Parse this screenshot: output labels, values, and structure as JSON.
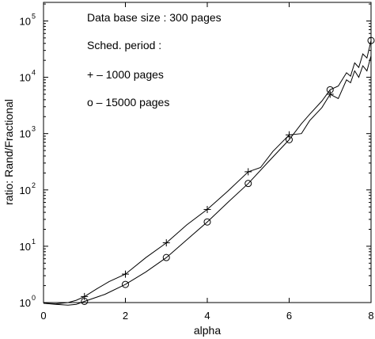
{
  "chart_data": {
    "type": "line",
    "xlabel": "alpha",
    "ylabel": "ratio:  Rand/Fractional",
    "xlim": [
      0,
      8
    ],
    "ylim_log10": [
      0,
      5.33
    ],
    "y_scale": "log",
    "grid": false,
    "x_ticks": [
      {
        "value": 0,
        "label": "0"
      },
      {
        "value": 2,
        "label": "2"
      },
      {
        "value": 4,
        "label": "4"
      },
      {
        "value": 6,
        "label": "6"
      },
      {
        "value": 8,
        "label": "8"
      }
    ],
    "y_ticks": [
      {
        "exp": 0,
        "base": "10",
        "sup": "0"
      },
      {
        "exp": 1,
        "base": "10",
        "sup": "1"
      },
      {
        "exp": 2,
        "base": "10",
        "sup": "2"
      },
      {
        "exp": 3,
        "base": "10",
        "sup": "3"
      },
      {
        "exp": 4,
        "base": "10",
        "sup": "4"
      },
      {
        "exp": 5,
        "base": "10",
        "sup": "5"
      }
    ],
    "annotations": [
      "Data base size : 300 pages",
      "Sched. period :",
      "+ – 1000 pages",
      "o – 15000 pages"
    ],
    "series": [
      {
        "marker": "plus",
        "line": [
          [
            0.0,
            0.97
          ],
          [
            0.3,
            0.95
          ],
          [
            0.6,
            1.0
          ],
          [
            0.8,
            1.1
          ],
          [
            1.0,
            1.28
          ],
          [
            1.3,
            1.75
          ],
          [
            1.6,
            2.35
          ],
          [
            2.0,
            3.2
          ],
          [
            2.5,
            6.3
          ],
          [
            3.0,
            11.5
          ],
          [
            3.5,
            24.0
          ],
          [
            4.0,
            45.0
          ],
          [
            4.5,
            95.0
          ],
          [
            5.0,
            210.0
          ],
          [
            5.3,
            250.0
          ],
          [
            5.6,
            480.0
          ],
          [
            6.0,
            950.0
          ],
          [
            6.3,
            1000.0
          ],
          [
            6.5,
            1700.0
          ],
          [
            6.8,
            2900.0
          ],
          [
            7.0,
            5000.0
          ],
          [
            7.2,
            4200.0
          ],
          [
            7.4,
            9000.0
          ],
          [
            7.5,
            8000.0
          ],
          [
            7.6,
            13000.0
          ],
          [
            7.7,
            10000.0
          ],
          [
            7.8,
            16000.0
          ],
          [
            7.9,
            13000.0
          ],
          [
            8.0,
            24000.0
          ]
        ],
        "marker_points": [
          [
            1,
            1.28
          ],
          [
            2,
            3.2
          ],
          [
            3,
            11.5
          ],
          [
            4,
            45.0
          ],
          [
            5,
            210.0
          ],
          [
            6,
            950.0
          ],
          [
            7,
            5000.0
          ]
        ]
      },
      {
        "marker": "circle",
        "line": [
          [
            0.0,
            0.97
          ],
          [
            0.3,
            0.93
          ],
          [
            0.6,
            0.9
          ],
          [
            0.8,
            0.93
          ],
          [
            1.0,
            1.05
          ],
          [
            1.5,
            1.4
          ],
          [
            2.0,
            2.1
          ],
          [
            2.5,
            3.5
          ],
          [
            3.0,
            6.3
          ],
          [
            3.5,
            13.0
          ],
          [
            4.0,
            27.0
          ],
          [
            4.5,
            60.0
          ],
          [
            5.0,
            130.0
          ],
          [
            5.5,
            320.0
          ],
          [
            6.0,
            780.0
          ],
          [
            6.3,
            1500.0
          ],
          [
            6.5,
            2200.0
          ],
          [
            6.8,
            3800.0
          ],
          [
            7.0,
            6000.0
          ],
          [
            7.2,
            7000.0
          ],
          [
            7.4,
            12000.0
          ],
          [
            7.5,
            10500.0
          ],
          [
            7.6,
            18000.0
          ],
          [
            7.7,
            15000.0
          ],
          [
            7.8,
            26000.0
          ],
          [
            7.9,
            22000.0
          ],
          [
            8.0,
            45000.0
          ]
        ],
        "marker_points": [
          [
            1,
            1.05
          ],
          [
            2,
            2.1
          ],
          [
            3,
            6.3
          ],
          [
            4,
            27.0
          ],
          [
            5,
            130.0
          ],
          [
            6,
            780.0
          ],
          [
            7,
            6000.0
          ],
          [
            8,
            45000.0
          ]
        ]
      }
    ]
  }
}
